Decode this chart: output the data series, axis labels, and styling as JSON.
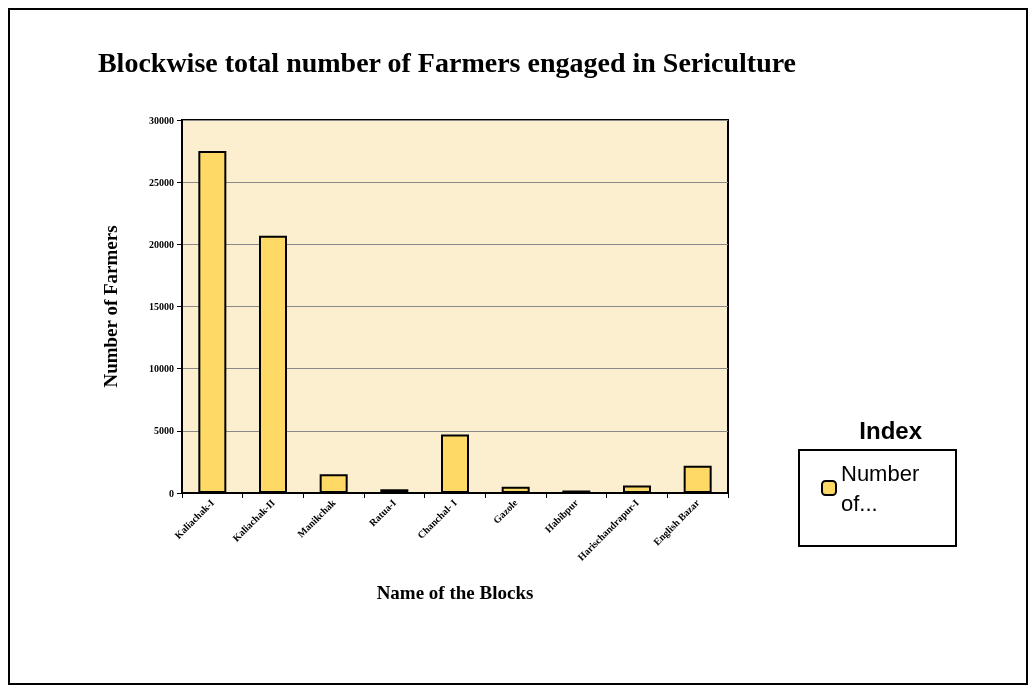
{
  "chart_data": {
    "type": "bar",
    "title": "Blockwise total number of Farmers engaged in Sericulture",
    "xlabel": "Name of the Blocks",
    "ylabel": "Number of Farmers",
    "legend_title": "Index",
    "categories": [
      "Kaliachak-I",
      "Kaliachak-II",
      "Manikchak",
      "Ratua-I",
      "Chanchal- I",
      "Gazole",
      "Habibpur",
      "Harischandrapur-I",
      "English Bazar"
    ],
    "series": [
      {
        "name": "Number of...",
        "color": "#ffd966",
        "values": [
          27500,
          20700,
          1500,
          300,
          4700,
          500,
          200,
          600,
          2200
        ]
      }
    ],
    "ylim": [
      0,
      30000
    ],
    "yticks": [
      0,
      5000,
      10000,
      15000,
      20000,
      25000,
      30000
    ],
    "grid": "y",
    "legend": "right"
  }
}
